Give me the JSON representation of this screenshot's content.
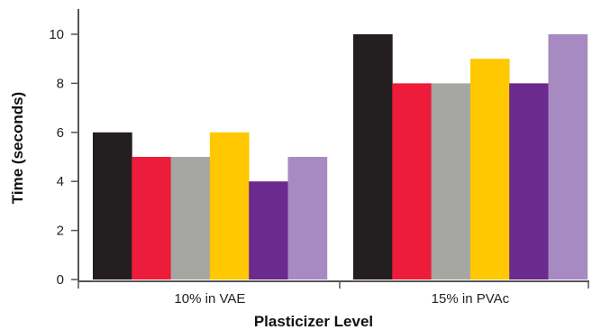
{
  "chart_data": {
    "type": "bar",
    "title": "",
    "xlabel": "Plasticizer Level",
    "ylabel": "Time (seconds)",
    "ylim": [
      0,
      11
    ],
    "yticks": [
      0,
      2,
      4,
      6,
      8,
      10
    ],
    "categories": [
      "10% in VAE",
      "15% in PVAc"
    ],
    "series": [
      {
        "color": "#231f20",
        "values": [
          6,
          10
        ]
      },
      {
        "color": "#ed1c3a",
        "values": [
          5,
          8
        ]
      },
      {
        "color": "#a6a6a3",
        "values": [
          5,
          8
        ]
      },
      {
        "color": "#ffc800",
        "values": [
          6,
          9
        ]
      },
      {
        "color": "#6a2a8e",
        "values": [
          4,
          8
        ]
      },
      {
        "color": "#a78ac1",
        "values": [
          5,
          10
        ]
      }
    ],
    "grid": false,
    "legend": "none"
  }
}
